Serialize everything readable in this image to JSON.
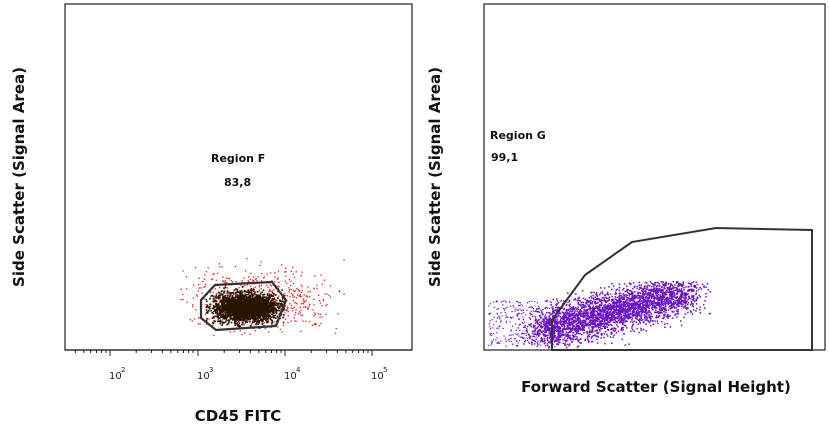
{
  "chart_data": [
    {
      "type": "scatter",
      "xlabel": "CD45 FITC",
      "ylabel": "Side Scatter (Signal Area)",
      "x_scale": "log",
      "x_ticks": [
        {
          "base": "10",
          "exp": "2"
        },
        {
          "base": "10",
          "exp": "3"
        },
        {
          "base": "10",
          "exp": "4"
        },
        {
          "base": "10",
          "exp": "5"
        }
      ],
      "gate": {
        "name": "Region F",
        "value": "83,8"
      },
      "colors": {
        "gated": "#2a1500",
        "ungated": "#e8201a"
      }
    },
    {
      "type": "scatter",
      "xlabel": "Forward Scatter (Signal Height)",
      "ylabel": "Side Scatter (Signal Area)",
      "gate": {
        "name": "Region G",
        "value": "99,1"
      },
      "colors": {
        "points": "#6a12c8",
        "gate": "#333333"
      }
    }
  ]
}
